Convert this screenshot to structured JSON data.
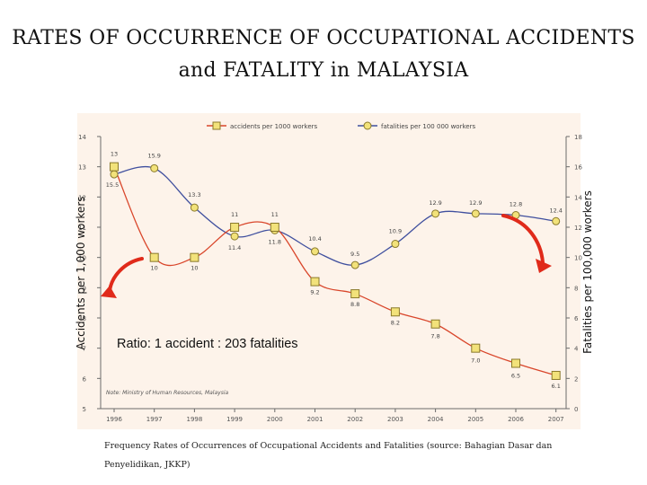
{
  "page": {
    "title_line1": "RATES OF OCCURRENCE OF OCCUPATIONAL ACCIDENTS",
    "title_line2": "and FATALITY in MALAYSIA",
    "caption": "Frequency Rates of Occurrences of Occupational Accidents and Fatalities (source: Bahagian Dasar dan Penyelidikan, JKKP)"
  },
  "chart_data": {
    "type": "line",
    "categories": [
      "1996",
      "1997",
      "1998",
      "1999",
      "2000",
      "2001",
      "2002",
      "2003",
      "2004",
      "2005",
      "2006",
      "2007"
    ],
    "series": [
      {
        "name": "accidents per 1000 workers",
        "axis": "left",
        "marker": "square",
        "color": "#d9462b",
        "values": [
          13.0,
          10.0,
          10.0,
          11.0,
          11.0,
          9.2,
          8.8,
          8.2,
          7.8,
          7.0,
          6.5,
          6.1
        ],
        "labels": [
          "13",
          "10",
          "10",
          "11",
          "11",
          "9.2",
          "8.8",
          "8.2",
          "7.8",
          "7.0",
          "6.5",
          "6.1"
        ]
      },
      {
        "name": "fatalities per 100 000 workers",
        "axis": "right",
        "marker": "circle",
        "color": "#3f4f9e",
        "values": [
          15.5,
          15.9,
          13.3,
          11.4,
          11.8,
          10.4,
          9.5,
          10.9,
          12.9,
          12.9,
          12.8,
          12.4
        ],
        "labels": [
          "15.5",
          "15.9",
          "13.3",
          "11.4",
          "11.8",
          "10.4",
          "9.5",
          "10.9",
          "12.9",
          "12.9",
          "12.8",
          "12.4"
        ]
      }
    ],
    "ylabel_left": "Accidents per 1,000 workers",
    "ylabel_right": "Fatalities per 100,000 workers",
    "ylim_left": [
      5,
      14
    ],
    "ylim_right": [
      0,
      18
    ],
    "yticks_left": [
      "5",
      "6",
      "7",
      "8",
      "9",
      "10",
      "11",
      "12",
      "13",
      "14"
    ],
    "yticks_right": [
      "0",
      "2",
      "4",
      "6",
      "8",
      "10",
      "12",
      "14",
      "16",
      "18"
    ],
    "legend_position": "top",
    "note": "Note: Ministry of Human Resources, Malaysia",
    "annotation": "Ratio: 1 accident : 203 fatalities",
    "grid": false,
    "colors": {
      "panel": "#fdf3ea",
      "arrow": "#e02a1a",
      "marker_fill": "#f2e27a"
    }
  }
}
